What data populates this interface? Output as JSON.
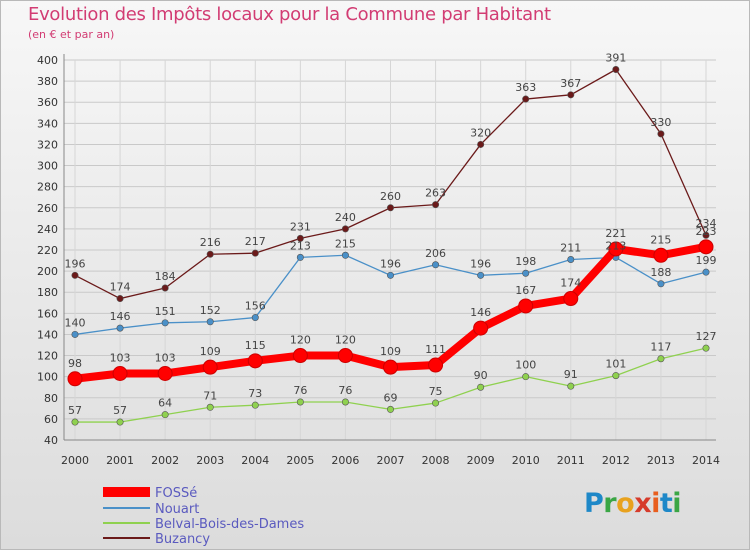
{
  "header": {
    "title": "Evolution des Impôts locaux pour la Commune par Habitant",
    "subtitle": "(en € et par an)"
  },
  "logo": {
    "text": "Proxiti",
    "letters": [
      "P",
      "r",
      "o",
      "x",
      "i",
      "t",
      "i"
    ],
    "colors": [
      "#1e88c8",
      "#3aa645",
      "#e8a21e",
      "#d63b2b",
      "#e85e1e",
      "#1e88c8",
      "#3aa645"
    ]
  },
  "chart_data": {
    "type": "line",
    "title": "Evolution des Impôts locaux pour la Commune par Habitant",
    "subtitle": "(en € et par an)",
    "xlabel": "",
    "ylabel": "",
    "x": [
      "2000",
      "2001",
      "2002",
      "2003",
      "2004",
      "2005",
      "2006",
      "2007",
      "2008",
      "2009",
      "2010",
      "2011",
      "2012",
      "2013",
      "2014"
    ],
    "ylim": [
      40,
      400
    ],
    "yticks": [
      40,
      60,
      80,
      100,
      120,
      140,
      160,
      180,
      200,
      220,
      240,
      260,
      280,
      300,
      320,
      340,
      360,
      380,
      400
    ],
    "grid": true,
    "legend_position": "bottom-left",
    "series": [
      {
        "name": "FOSSé",
        "color": "#ff0000",
        "values": [
          98,
          103,
          103,
          109,
          115,
          120,
          120,
          109,
          111,
          146,
          167,
          174,
          221,
          215,
          223
        ],
        "labels": [
          "98",
          "103",
          "103",
          "109",
          "115",
          "120",
          "120",
          "109",
          "111",
          "146",
          "167",
          "174",
          "221",
          "215",
          "223"
        ]
      },
      {
        "name": "Nouart",
        "color": "#4a90c8",
        "values": [
          140,
          146,
          151,
          152,
          156,
          213,
          215,
          196,
          206,
          196,
          198,
          211,
          213,
          188,
          199
        ],
        "labels": [
          "140",
          "146",
          "151",
          "152",
          "156",
          "213",
          "215",
          "196",
          "206",
          "196",
          "198",
          "211",
          "213",
          "188",
          "199"
        ]
      },
      {
        "name": "Belval-Bois-des-Dames",
        "color": "#8fd14f",
        "values": [
          57,
          57,
          64,
          71,
          73,
          76,
          76,
          69,
          75,
          90,
          100,
          91,
          101,
          117,
          127
        ],
        "labels": [
          "57",
          "57",
          "64",
          "71",
          "73",
          "76",
          "76",
          "69",
          "75",
          "90",
          "100",
          "91",
          "101",
          "117",
          "127"
        ]
      },
      {
        "name": "Buzancy",
        "color": "#6b1a1a",
        "values": [
          196,
          174,
          184,
          216,
          217,
          231,
          240,
          260,
          263,
          320,
          363,
          367,
          391,
          330,
          234
        ],
        "labels": [
          "196",
          "174",
          "184",
          "216",
          "217",
          "231",
          "240",
          "260",
          "263",
          "320",
          "363",
          "367",
          "391",
          "330",
          "234"
        ]
      }
    ]
  }
}
